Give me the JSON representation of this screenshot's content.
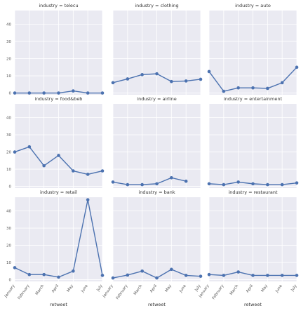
{
  "chart_data": {
    "type": "line",
    "layout": "facet-grid-3x3",
    "shared_y_axis": true,
    "facet_variable": "industry",
    "xlabel": "retweet",
    "ylabel": "",
    "categories": [
      "January",
      "February",
      "March",
      "April",
      "May",
      "June",
      "July"
    ],
    "ylim": [
      -1,
      48
    ],
    "yticks": [
      0,
      10,
      20,
      30,
      40
    ],
    "grid": true,
    "line_color": "#4c72b0",
    "background_color": "#eaeaf2",
    "panels": [
      {
        "title": "industry = telecu",
        "values": [
          0,
          0,
          0,
          0,
          1.2,
          0,
          0
        ]
      },
      {
        "title": "industry = clothing",
        "values": [
          6,
          8.2,
          10.7,
          11.2,
          6.7,
          7,
          8
        ]
      },
      {
        "title": "industry = auto",
        "values": [
          12.5,
          1,
          3,
          3,
          2.7,
          6,
          15
        ]
      },
      {
        "title": "industry = food&beb",
        "values": [
          20,
          23,
          12,
          18,
          9,
          7,
          9
        ]
      },
      {
        "title": "industry = airline",
        "values": [
          2.5,
          1,
          1,
          1.5,
          5,
          3,
          null
        ]
      },
      {
        "title": "industry = entertainment",
        "values": [
          1.5,
          1,
          2.5,
          1.5,
          1,
          1,
          2
        ]
      },
      {
        "title": "industry = retail",
        "values": [
          7,
          3,
          3,
          1.5,
          5,
          46.5,
          2.5
        ]
      },
      {
        "title": "industry = bank",
        "values": [
          1,
          2.7,
          5,
          1,
          6,
          2.5,
          2
        ]
      },
      {
        "title": "industry = restaurant",
        "values": [
          3,
          2.5,
          4.5,
          2.5,
          2.5,
          2.5,
          2.5
        ]
      }
    ]
  }
}
